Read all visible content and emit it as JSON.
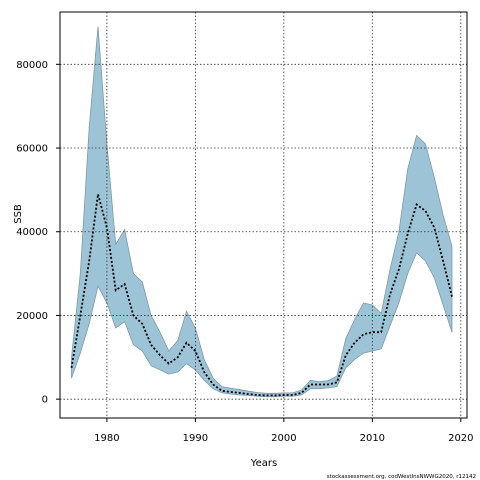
{
  "chart_data": {
    "type": "area",
    "xlabel": "Years",
    "ylabel": "SSB",
    "xlim": [
      1974.7,
      2020.7
    ],
    "ylim": [
      -4500,
      92500
    ],
    "x_ticks": [
      1980,
      1990,
      2000,
      2010,
      2020
    ],
    "y_ticks": [
      0,
      20000,
      40000,
      60000,
      80000
    ],
    "grid": true,
    "band_color": "#9dc3d7",
    "band_edge_color": "#7f9aa6",
    "line_color": "#000000",
    "x": [
      1976,
      1977,
      1978,
      1979,
      1980,
      1981,
      1982,
      1983,
      1984,
      1985,
      1986,
      1987,
      1988,
      1989,
      1990,
      1991,
      1992,
      1993,
      1994,
      1995,
      1996,
      1997,
      1998,
      1999,
      2000,
      2001,
      2002,
      2003,
      2004,
      2005,
      2006,
      2007,
      2008,
      2009,
      2010,
      2011,
      2012,
      2013,
      2014,
      2015,
      2016,
      2017,
      2018,
      2019
    ],
    "series": [
      {
        "values": [
          7500,
          20000,
          33000,
          49000,
          41000,
          26000,
          27500,
          20000,
          18000,
          13000,
          10500,
          8500,
          10000,
          13500,
          11500,
          6500,
          3500,
          2000,
          1700,
          1500,
          1200,
          1000,
          900,
          900,
          1000,
          1000,
          1500,
          3500,
          3500,
          3500,
          4000,
          10500,
          13500,
          15500,
          16000,
          16000,
          25000,
          31000,
          39500,
          46500,
          45000,
          41000,
          33000,
          24500
        ]
      }
    ],
    "band_upper": [
      10000,
      30000,
      65000,
      89000,
      61000,
      37000,
      40500,
      30000,
      28000,
      20000,
      16000,
      11500,
      14000,
      21000,
      17000,
      9500,
      5000,
      3000,
      2600,
      2300,
      1900,
      1600,
      1400,
      1400,
      1500,
      1500,
      2200,
      4500,
      4200,
      4400,
      5500,
      14500,
      19000,
      23000,
      22500,
      20500,
      31000,
      40000,
      55000,
      63000,
      61000,
      53000,
      44000,
      36500
    ],
    "band_lower": [
      5000,
      11000,
      18000,
      27000,
      23000,
      17000,
      18500,
      13000,
      11500,
      8000,
      7000,
      6000,
      6500,
      8500,
      7000,
      4500,
      2500,
      1500,
      1200,
      1000,
      900,
      700,
      600,
      600,
      700,
      700,
      1000,
      2500,
      2500,
      2700,
      3000,
      7500,
      9500,
      11000,
      11500,
      12000,
      17500,
      23000,
      30000,
      35000,
      33000,
      29000,
      22500,
      16000
    ]
  },
  "credit": "stockassessment.org, codWestInsNWWG2020, r12142"
}
